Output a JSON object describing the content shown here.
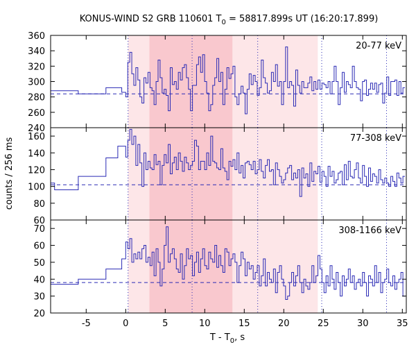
{
  "chart_data": {
    "type": "line",
    "title_main": "KONUS-WIND S2 GRB 110601 T",
    "title_sub": "0",
    "title_rest": " = 58817.899s UT (16:20:17.899)",
    "xlabel_main": "T - T",
    "xlabel_sub": "0",
    "xlabel_rest": ", s",
    "ylabel": "counts / 256 ms",
    "xlim": [
      -9.5,
      35.5
    ],
    "xticks": [
      -5,
      0,
      5,
      10,
      15,
      20,
      25,
      30,
      35
    ],
    "vlines": [
      0.3,
      8.4,
      16.7,
      24.8,
      33.0
    ],
    "shaded_light": [
      [
        0.3,
        24.3
      ]
    ],
    "shaded_dark": [
      [
        3.0,
        13.5
      ]
    ],
    "colors": {
      "series": "#2a2ab5",
      "shade_light": "#fde6e8",
      "shade_dark": "#f9c8ce",
      "vline": "#2a2ab5"
    },
    "panels": [
      {
        "label": "20-77 keV",
        "ylim": [
          240,
          360
        ],
        "yticks": [
          240,
          260,
          280,
          300,
          320,
          340,
          360
        ],
        "background": 284,
        "steps": [
          {
            "x": -9.5,
            "y": 288
          },
          {
            "x": -6.0,
            "y": 284
          },
          {
            "x": -2.5,
            "y": 292
          },
          {
            "x": -0.5,
            "y": 286
          }
        ],
        "burst": [
          280,
          325,
          338,
          310,
          295,
          318,
          302,
          280,
          272,
          305,
          298,
          312,
          292,
          288,
          270,
          300,
          328,
          305,
          285,
          290,
          282,
          262,
          318,
          296,
          300,
          290,
          312,
          302,
          318,
          322,
          305,
          290,
          262,
          295,
          295,
          322,
          332,
          312,
          335,
          300,
          285,
          262,
          270,
          295,
          305,
          330,
          300,
          312,
          270,
          290,
          318,
          304,
          310,
          320,
          280,
          270,
          284,
          294,
          285,
          258,
          290,
          310,
          296,
          308,
          300,
          282,
          292,
          328,
          305,
          298,
          285,
          288,
          312,
          300,
          322,
          294,
          300,
          270,
          300,
          345,
          292,
          300,
          295,
          268,
          315,
          295,
          285,
          300,
          292,
          292,
          298,
          306,
          288,
          300,
          290,
          302,
          290,
          298,
          296,
          292,
          300,
          284,
          300,
          320,
          300,
          270,
          292,
          312,
          286,
          300,
          296,
          292,
          320,
          300,
          292,
          290,
          275,
          300,
          302,
          282,
          290,
          298,
          290,
          298,
          286,
          296,
          298,
          272,
          285,
          306,
          282,
          300,
          300,
          302,
          282,
          300,
          285,
          292,
          300,
          278,
          290,
          300,
          274,
          282,
          280,
          298,
          282,
          310,
          280,
          310,
          292,
          300,
          306,
          282,
          290,
          302,
          278,
          300,
          295,
          270,
          300,
          294,
          272,
          302,
          285,
          300,
          296,
          282,
          290,
          306,
          300,
          316,
          300,
          280,
          310,
          298
        ]
      },
      {
        "label": "77-308 keV",
        "ylim": [
          60,
          170
        ],
        "yticks": [
          60,
          80,
          100,
          120,
          140,
          160
        ],
        "background": 102,
        "steps": [
          {
            "x": -9.5,
            "y": 104
          },
          {
            "x": -9.0,
            "y": 96
          },
          {
            "x": -6.0,
            "y": 112
          },
          {
            "x": -2.5,
            "y": 134
          },
          {
            "x": -1.0,
            "y": 148
          }
        ],
        "burst": [
          135,
          155,
          168,
          150,
          160,
          125,
          150,
          128,
          100,
          140,
          120,
          130,
          122,
          120,
          138,
          126,
          130,
          102,
          125,
          138,
          128,
          150,
          115,
          128,
          135,
          120,
          140,
          130,
          118,
          135,
          128,
          120,
          125,
          130,
          155,
          148,
          120,
          130,
          130,
          120,
          140,
          125,
          160,
          130,
          128,
          122,
          120,
          145,
          122,
          118,
          108,
          130,
          124,
          132,
          120,
          140,
          116,
          125,
          110,
          128,
          130,
          126,
          120,
          130,
          115,
          120,
          132,
          118,
          110,
          125,
          132,
          118,
          120,
          102,
          128,
          120,
          112,
          104,
          108,
          116,
          122,
          125,
          108,
          116,
          110,
          120,
          88,
          122,
          110,
          115,
          100,
          128,
          106,
          118,
          115,
          124,
          105,
          118,
          112,
          100,
          124,
          112,
          118,
          104,
          108,
          116,
          118,
          102,
          126,
          108,
          130,
          112,
          110,
          120,
          128,
          110,
          104,
          125,
          112,
          100,
          122,
          106,
          115,
          112,
          104,
          120,
          108,
          104,
          110,
          104,
          100,
          112,
          106,
          100,
          116,
          110,
          104,
          112,
          102,
          108,
          118,
          104,
          100,
          110,
          114,
          104,
          108,
          118,
          104,
          100,
          112,
          128,
          104,
          112,
          108,
          100,
          110,
          106,
          118,
          104,
          100,
          108,
          102,
          108,
          104,
          100,
          106,
          102,
          108,
          104,
          110,
          102,
          108,
          104,
          100,
          106,
          104
        ]
      },
      {
        "label": "308-1166 keV",
        "ylim": [
          20,
          75
        ],
        "yticks": [
          20,
          30,
          40,
          50,
          60,
          70
        ],
        "background": 38,
        "steps": [
          {
            "x": -9.5,
            "y": 37
          },
          {
            "x": -6.0,
            "y": 40
          },
          {
            "x": -2.5,
            "y": 46
          },
          {
            "x": -0.5,
            "y": 52
          }
        ],
        "burst": [
          62,
          58,
          64,
          50,
          55,
          52,
          56,
          52,
          58,
          60,
          50,
          53,
          48,
          56,
          42,
          58,
          50,
          36,
          46,
          60,
          71,
          50,
          55,
          58,
          52,
          46,
          44,
          55,
          40,
          48,
          58,
          52,
          54,
          42,
          50,
          56,
          44,
          52,
          58,
          48,
          46,
          56,
          52,
          50,
          60,
          47,
          54,
          48,
          44,
          58,
          56,
          48,
          52,
          55,
          50,
          38,
          48,
          56,
          52,
          42,
          50,
          46,
          48,
          40,
          44,
          48,
          36,
          42,
          52,
          36,
          44,
          40,
          38,
          46,
          32,
          44,
          48,
          40,
          36,
          28,
          30,
          38,
          44,
          36,
          42,
          48,
          38,
          32,
          40,
          36,
          34,
          38,
          48,
          38,
          42,
          54,
          46,
          38,
          32,
          42,
          36,
          48,
          40,
          34,
          44,
          38,
          30,
          42,
          36,
          40,
          46,
          38,
          42,
          34,
          38,
          40,
          36,
          44,
          38,
          30,
          42,
          40,
          36,
          48,
          38,
          44,
          32,
          38,
          40,
          46,
          38,
          36,
          42,
          34,
          38,
          40,
          44,
          30,
          38,
          42,
          36,
          32,
          38,
          40,
          34,
          44,
          36,
          38,
          30,
          40,
          36,
          42,
          38,
          34,
          40,
          36,
          44,
          38,
          32,
          40,
          36,
          38,
          44,
          34,
          40,
          36,
          30,
          38,
          42,
          36,
          40,
          38,
          34,
          42,
          38,
          46
        ]
      }
    ]
  }
}
